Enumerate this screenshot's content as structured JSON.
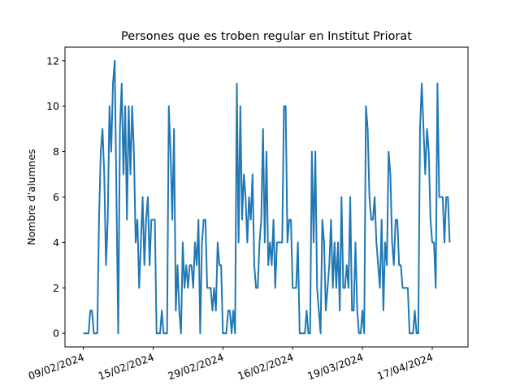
{
  "chart_data": {
    "type": "line",
    "title": "Persones que es troben regular en Institut Priorat",
    "xlabel": "",
    "ylabel": "Nombre d'alumnes",
    "xtick_labels": [
      "09/02/2024",
      "15/02/2024",
      "29/02/2024",
      "16/02/2024",
      "19/03/2024",
      "17/04/2024"
    ],
    "xtick_positions": [
      0,
      40,
      80,
      120,
      160,
      200
    ],
    "xlim": [
      -10.5,
      220.5
    ],
    "yticks": [
      0,
      2,
      4,
      6,
      8,
      10,
      12
    ],
    "ylim": [
      -0.6,
      12.6
    ],
    "line_color": "#1f77b4",
    "grid": false,
    "series": [
      {
        "x": [
          0,
          1,
          2,
          3,
          4,
          5,
          6,
          7,
          8,
          9,
          10,
          11,
          12,
          13,
          14,
          15,
          16,
          17,
          18,
          19,
          20,
          21,
          22,
          23,
          24,
          25,
          26,
          27,
          28,
          29,
          30,
          31,
          32,
          33,
          34,
          35,
          36,
          37,
          38,
          39,
          40,
          41,
          42,
          43,
          44,
          45,
          46,
          47,
          48,
          49,
          50,
          51,
          52,
          53,
          54,
          55,
          56,
          57,
          58,
          59,
          60,
          61,
          62,
          63,
          64,
          65,
          66,
          67,
          68,
          69,
          70,
          71,
          72,
          73,
          74,
          75,
          76,
          77,
          78,
          79,
          80,
          81,
          82,
          83,
          84,
          85,
          86,
          87,
          88,
          89,
          90,
          91,
          92,
          93,
          94,
          95,
          96,
          97,
          98,
          99,
          100,
          101,
          102,
          103,
          104,
          105,
          106,
          107,
          108,
          109,
          110,
          111,
          112,
          113,
          114,
          115,
          116,
          117,
          118,
          119,
          120,
          121,
          122,
          123,
          124,
          125,
          126,
          127,
          128,
          129,
          130,
          131,
          132,
          133,
          134,
          135,
          136,
          137,
          138,
          139,
          140,
          141,
          142,
          143,
          144,
          145,
          146,
          147,
          148,
          149,
          150,
          151,
          152,
          153,
          154,
          155,
          156,
          157,
          158,
          159,
          160,
          161,
          162,
          163,
          164,
          165,
          166,
          167,
          168,
          169,
          170,
          171,
          172,
          173,
          174,
          175,
          176,
          177,
          178,
          179,
          180,
          181,
          182,
          183,
          184,
          185,
          186,
          187,
          188,
          189,
          190,
          191,
          192,
          193,
          194,
          195,
          196,
          197,
          198,
          199,
          200,
          201,
          202,
          203,
          204,
          205,
          206,
          207,
          208,
          209,
          210
        ],
        "y": [
          0,
          0,
          0,
          0,
          1,
          1,
          0,
          0,
          0,
          5,
          8,
          9,
          7,
          3,
          5,
          10,
          8,
          11,
          12,
          6,
          0,
          9,
          11,
          7,
          10,
          5,
          10,
          7,
          10,
          8,
          4,
          5,
          2,
          4,
          6,
          3,
          5,
          6,
          3,
          5,
          5,
          5,
          0,
          0,
          0,
          1,
          0,
          0,
          0,
          10,
          8,
          5,
          9,
          1,
          3,
          1,
          0,
          4,
          2,
          3,
          2,
          3,
          3,
          2,
          4,
          3,
          5,
          0,
          4,
          5,
          5,
          2,
          2,
          2,
          1,
          2,
          1,
          4,
          3,
          3,
          0,
          0,
          0,
          1,
          1,
          0,
          1,
          0,
          11,
          4,
          10,
          5,
          7,
          6,
          4,
          6,
          5,
          7,
          3,
          2,
          2,
          4,
          5,
          9,
          4,
          8,
          3,
          4,
          3,
          5,
          2,
          4,
          4,
          4,
          4,
          10,
          10,
          4,
          5,
          5,
          2,
          2,
          2,
          4,
          0,
          0,
          0,
          0,
          1,
          0,
          0,
          8,
          4,
          8,
          2,
          1,
          0,
          5,
          4,
          1,
          2,
          3,
          5,
          2,
          4,
          2,
          4,
          1,
          6,
          2,
          2,
          3,
          2,
          6,
          1,
          1,
          4,
          1,
          0,
          0,
          1,
          0,
          10,
          9,
          6,
          5,
          5,
          6,
          4,
          3,
          2,
          5,
          1,
          4,
          3,
          8,
          7,
          4,
          3,
          5,
          5,
          3,
          3,
          2,
          2,
          2,
          2,
          0,
          0,
          0,
          1,
          0,
          0,
          9,
          11,
          9,
          7,
          9,
          8,
          5,
          4,
          4,
          2,
          11,
          6,
          6,
          6,
          4,
          6,
          6,
          4
        ]
      }
    ]
  }
}
